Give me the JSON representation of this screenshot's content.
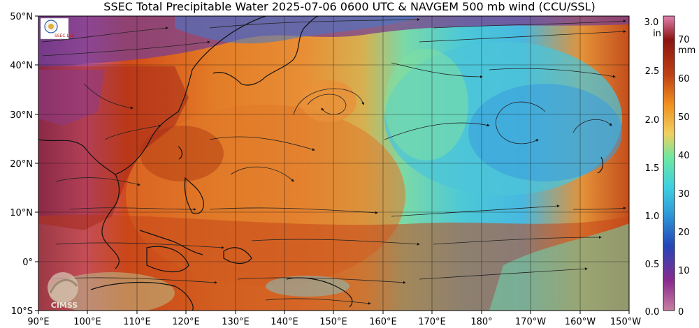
{
  "title": "SSEC Total Precipitable Water  2025-07-06 0600 UTC & NAVGEM 500 mb wind (CCU/SSL)",
  "map": {
    "lat_labels": [
      "50°N",
      "40°N",
      "30°N",
      "20°N",
      "10°N",
      "0°",
      "10°S"
    ],
    "lon_labels": [
      "90°E",
      "100°E",
      "110°E",
      "120°E",
      "130°E",
      "140°E",
      "150°E",
      "160°E",
      "170°E",
      "180°",
      "170°W",
      "160°W",
      "150°W"
    ],
    "lat_range": [
      -10,
      50
    ],
    "lon_range_east": [
      90,
      210
    ],
    "gridlines": true
  },
  "colorbar": {
    "units_inches": "in",
    "units_mm": "mm",
    "inch_ticks": [
      "3.0",
      "2.5",
      "2.0",
      "1.5",
      "1.0",
      "0.5",
      "0.0"
    ],
    "mm_ticks": [
      "70",
      "60",
      "50",
      "40",
      "30",
      "20",
      "10",
      "0"
    ],
    "colors": [
      "#c77fa0",
      "#8a2a8f",
      "#2546b8",
      "#2e9bd8",
      "#3ed0e0",
      "#6fe8a0",
      "#f0d060",
      "#f0901e",
      "#c04015",
      "#8a1410",
      "#e080b0"
    ]
  },
  "logos": {
    "top_left": "SSEC Lab",
    "bottom_left": "CIMSS"
  }
}
